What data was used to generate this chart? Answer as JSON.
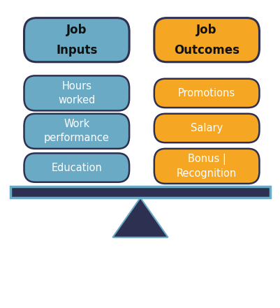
{
  "bg_color": "#ffffff",
  "left_header": "Job\nInputs",
  "right_header": "Job\nOutcomes",
  "left_header_color": "#6aaac5",
  "right_header_color": "#f5a623",
  "left_header_border": "#2d3050",
  "right_header_border": "#2d3050",
  "left_header_text_color": "#111111",
  "right_header_text_color": "#111111",
  "left_items": [
    "Hours\nworked",
    "Work\nperformance",
    "Education"
  ],
  "right_items": [
    "Promotions",
    "Salary",
    "Bonus |\nRecognition"
  ],
  "left_item_color": "#6aaac5",
  "right_item_color": "#f5a623",
  "item_text_color": "#ffffff",
  "item_border_color": "#2d3050",
  "beam_color": "#2d3050",
  "beam_edge_color": "#6aaac5",
  "triangle_color": "#2d3050",
  "triangle_edge_color": "#6aaac5",
  "figsize": [
    4.02,
    4.41
  ],
  "dpi": 100
}
